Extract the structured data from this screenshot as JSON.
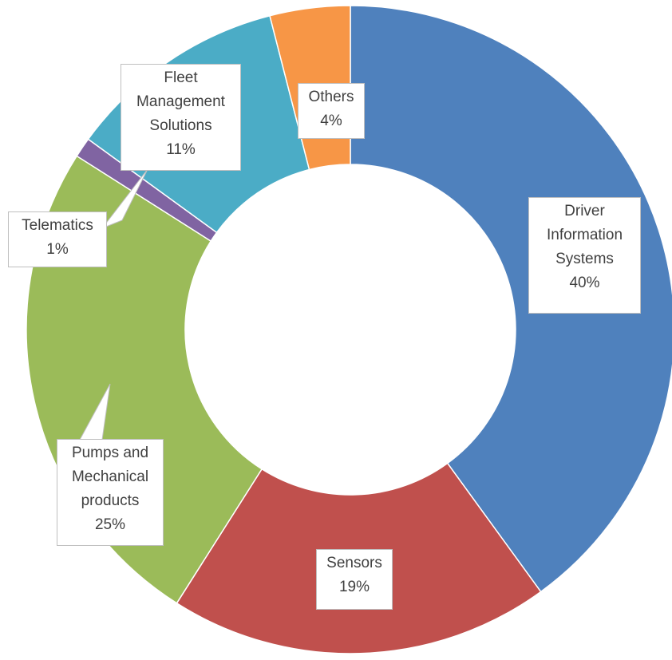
{
  "chart_data": {
    "type": "pie",
    "variant": "doughnut",
    "title": "",
    "legend": "none",
    "slices": [
      {
        "name": "Driver Information Systems",
        "label_lines": [
          "Driver",
          "Information",
          "Systems"
        ],
        "value": 40,
        "value_label": "40%",
        "color": "#4f81bd"
      },
      {
        "name": "Sensors",
        "label_lines": [
          "Sensors"
        ],
        "value": 19,
        "value_label": "19%",
        "color": "#c0504d"
      },
      {
        "name": "Pumps and Mechanical products",
        "label_lines": [
          "Pumps and",
          "Mechanical",
          "products"
        ],
        "value": 25,
        "value_label": "25%",
        "color": "#9bbb59"
      },
      {
        "name": "Telematics",
        "label_lines": [
          "Telematics"
        ],
        "value": 1,
        "value_label": "1%",
        "color": "#8064a2"
      },
      {
        "name": "Fleet Management Solutions",
        "label_lines": [
          "Fleet",
          "Management",
          "Solutions"
        ],
        "value": 11,
        "value_label": "11%",
        "color": "#4bacc6"
      },
      {
        "name": "Others",
        "label_lines": [
          "Others"
        ],
        "value": 4,
        "value_label": "4%",
        "color": "#f79646"
      }
    ],
    "start_angle_deg": 0,
    "direction": "clockwise"
  }
}
